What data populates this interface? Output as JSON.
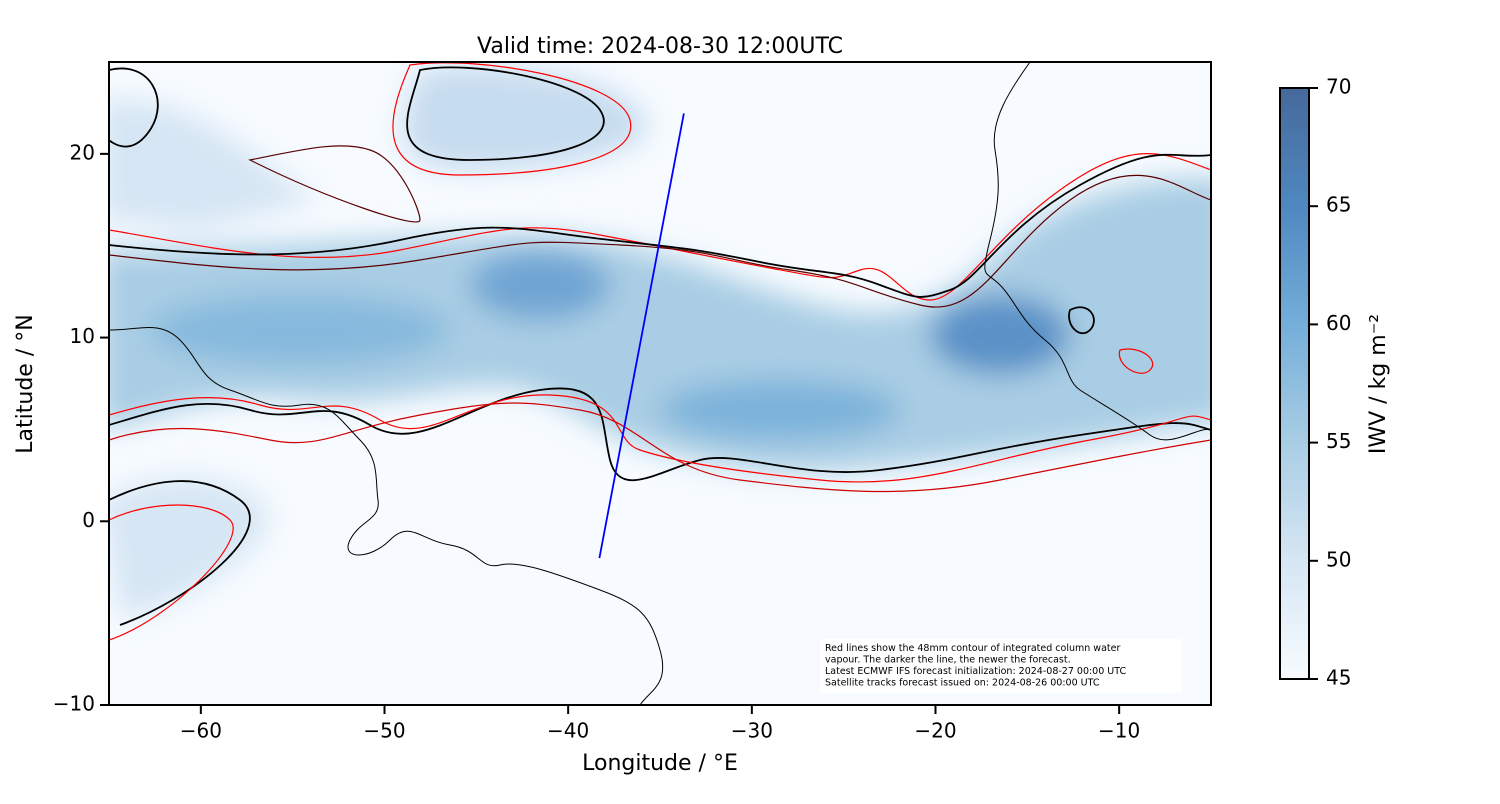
{
  "chart_data": {
    "type": "map",
    "title": "Valid time: 2024-08-30 12:00UTC",
    "xlabel": "Longitude / °E",
    "ylabel": "Latitude / °N",
    "xlim": [
      -65,
      -5
    ],
    "ylim": [
      -10,
      25
    ],
    "xticks": [
      {
        "value": -60,
        "label": "−60"
      },
      {
        "value": -50,
        "label": "−50"
      },
      {
        "value": -40,
        "label": "−40"
      },
      {
        "value": -30,
        "label": "−30"
      },
      {
        "value": -20,
        "label": "−20"
      },
      {
        "value": -10,
        "label": "−10"
      }
    ],
    "yticks": [
      {
        "value": -10,
        "label": "−10"
      },
      0,
      10,
      20
    ],
    "track": {
      "x": [
        -38.3,
        -33.7
      ],
      "y": [
        -2,
        22.2
      ],
      "color": "#0000ff"
    },
    "colorbar": {
      "label": "IWV / kg m⁻²",
      "lim": [
        45,
        70
      ],
      "ticks": [
        45,
        50,
        55,
        60,
        65,
        70
      ],
      "colors": [
        "#f7fbff",
        "#d6e6f4",
        "#a9cde4",
        "#74aed9",
        "#4f88c0",
        "#46699b"
      ]
    },
    "annotation": [
      "Red lines show the 48mm contour of integrated column water",
      "vapour. The darker the line, the newer the forecast.",
      "Latest ECMWF IFS forecast initialization: 2024-08-27 00:00 UTC",
      "Satellite tracks forecast issued on: 2024-08-26 00:00 UTC"
    ]
  }
}
